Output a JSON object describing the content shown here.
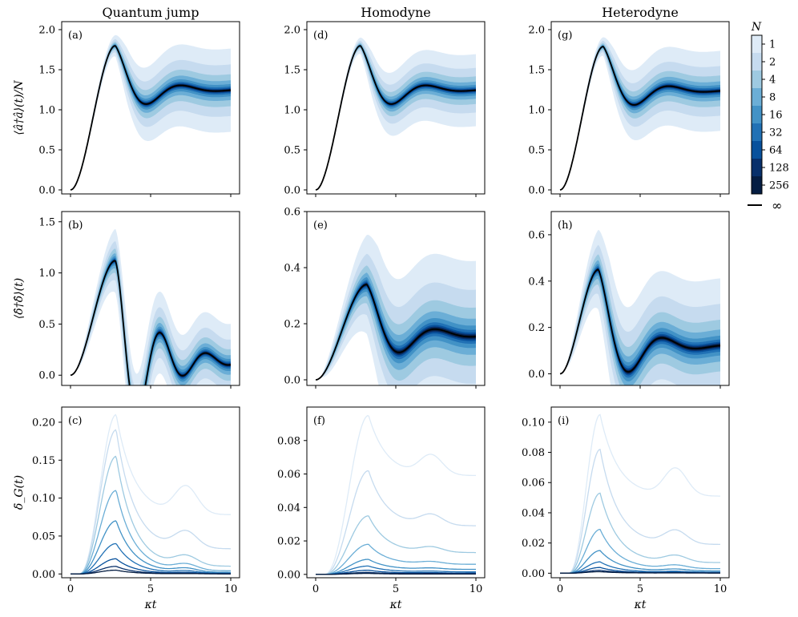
{
  "chart_data": {
    "type": "line",
    "column_titles": [
      "Quantum jump",
      "Homodyne",
      "Heterodyne"
    ],
    "row_ylabels": [
      "⟨â†â⟩(t)/N",
      "⟨δ̂†δ̂⟩(t)",
      "δ̄_G(t)"
    ],
    "xlabel": "κt",
    "xlim": [
      0,
      10
    ],
    "xticks": [
      0,
      5,
      10
    ],
    "colorbar": {
      "title": "N",
      "levels": [
        "1",
        "2",
        "4",
        "8",
        "16",
        "32",
        "64",
        "128",
        "256"
      ],
      "infinity_label": "∞",
      "colors": [
        "#deebf7",
        "#c6dbef",
        "#9ecae1",
        "#6baed6",
        "#4292c6",
        "#2171b5",
        "#08519c",
        "#08306b",
        "#051d42"
      ]
    },
    "panels": [
      {
        "label": "(a)",
        "row": 0,
        "col": 0,
        "ylim": [
          -0.05,
          2.1
        ],
        "yticks": [
          0.0,
          0.5,
          1.0,
          1.5,
          2.0
        ],
        "yfmt": 1,
        "mean": {
          "peak_t": 2.8,
          "peak": 1.8,
          "steady": 1.25,
          "omega": 1.45,
          "decay": 0.55,
          "dip": -0.05
        },
        "band_max": {
          "peak": 0.17,
          "steady": 0.52
        }
      },
      {
        "label": "(d)",
        "row": 0,
        "col": 1,
        "ylim": [
          -0.05,
          2.1
        ],
        "yticks": [
          0.0,
          0.5,
          1.0,
          1.5,
          2.0
        ],
        "yfmt": 1,
        "mean": {
          "peak_t": 2.8,
          "peak": 1.8,
          "steady": 1.25,
          "omega": 1.45,
          "decay": 0.55,
          "dip": -0.05
        },
        "band_max": {
          "peak": 0.13,
          "steady": 0.45
        }
      },
      {
        "label": "(g)",
        "row": 0,
        "col": 2,
        "ylim": [
          -0.05,
          2.1
        ],
        "yticks": [
          0.0,
          0.5,
          1.0,
          1.5,
          2.0
        ],
        "yfmt": 1,
        "mean": {
          "peak_t": 2.7,
          "peak": 1.79,
          "steady": 1.24,
          "omega": 1.45,
          "decay": 0.55,
          "dip": -0.05
        },
        "band_max": {
          "peak": 0.15,
          "steady": 0.5
        }
      },
      {
        "label": "(b)",
        "row": 1,
        "col": 0,
        "ylim": [
          -0.1,
          1.6
        ],
        "yticks": [
          0.0,
          0.5,
          1.0,
          1.5
        ],
        "yfmt": 1,
        "mean": {
          "peak_t": 2.8,
          "peak": 1.12,
          "steady": 0.14,
          "omega": 2.2,
          "decay": 0.45,
          "dip": -0.1
        },
        "band_max": {
          "peak": 0.4,
          "steady": 0.4
        }
      },
      {
        "label": "(e)",
        "row": 1,
        "col": 1,
        "ylim": [
          -0.02,
          0.6
        ],
        "yticks": [
          0.0,
          0.2,
          0.4,
          0.6
        ],
        "yfmt": 1,
        "mean": {
          "peak_t": 3.2,
          "peak": 0.34,
          "steady": 0.16,
          "omega": 1.4,
          "decay": 0.5,
          "dip": -0.08
        },
        "band_max": {
          "peak": 0.22,
          "steady": 0.27
        }
      },
      {
        "label": "(h)",
        "row": 1,
        "col": 2,
        "ylim": [
          -0.05,
          0.7
        ],
        "yticks": [
          0.0,
          0.2,
          0.4,
          0.6
        ],
        "yfmt": 1,
        "mean": {
          "peak_t": 2.4,
          "peak": 0.45,
          "steady": 0.12,
          "omega": 1.5,
          "decay": 0.55,
          "dip": -0.04
        },
        "band_max": {
          "peak": 0.23,
          "steady": 0.29
        }
      },
      {
        "label": "(c)",
        "row": 2,
        "col": 0,
        "ylim": [
          -0.005,
          0.22
        ],
        "yticks": [
          0.0,
          0.05,
          0.1,
          0.15,
          0.2
        ],
        "yfmt": 2,
        "curves": {
          "peak_t": 2.85,
          "peaks": [
            0.21,
            0.19,
            0.155,
            0.11,
            0.07,
            0.04,
            0.02,
            0.01,
            0.005
          ],
          "steadies": [
            0.078,
            0.033,
            0.01,
            0.004,
            0.002,
            0.001,
            0.0005,
            0.0002,
            0.0001
          ],
          "bump": 0.3
        }
      },
      {
        "label": "(f)",
        "row": 2,
        "col": 1,
        "ylim": [
          -0.002,
          0.1
        ],
        "yticks": [
          0.0,
          0.02,
          0.04,
          0.06,
          0.08
        ],
        "yfmt": 2,
        "curves": {
          "peak_t": 3.3,
          "peaks": [
            0.095,
            0.062,
            0.035,
            0.018,
            0.009,
            0.005,
            0.0025,
            0.0012,
            0.0006
          ],
          "steadies": [
            0.059,
            0.029,
            0.013,
            0.006,
            0.003,
            0.0015,
            0.0008,
            0.0004,
            0.0002
          ],
          "bump": 0.15
        }
      },
      {
        "label": "(i)",
        "row": 2,
        "col": 2,
        "ylim": [
          -0.003,
          0.11
        ],
        "yticks": [
          0.0,
          0.02,
          0.04,
          0.06,
          0.08,
          0.1
        ],
        "yfmt": 2,
        "curves": {
          "peak_t": 2.5,
          "peaks": [
            0.105,
            0.082,
            0.053,
            0.029,
            0.015,
            0.0075,
            0.0038,
            0.0019,
            0.001
          ],
          "steadies": [
            0.051,
            0.019,
            0.007,
            0.003,
            0.0015,
            0.0007,
            0.0003,
            0.0002,
            0.0001
          ],
          "bump": 0.25
        }
      }
    ]
  }
}
